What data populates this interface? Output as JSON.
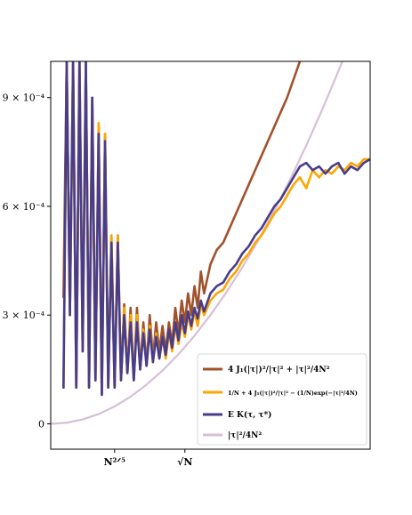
{
  "chart_data": {
    "type": "line",
    "title": "",
    "xlabel": "",
    "ylabel": "",
    "ylim": [
      -7e-05,
      0.001
    ],
    "xlim": [
      0,
      100
    ],
    "grid": false,
    "legend_position": "lower-right",
    "y_ticks": [
      {
        "value": 0,
        "label": "0"
      },
      {
        "value": 0.0003,
        "label": "3 × 10⁻⁴"
      },
      {
        "value": 0.0006,
        "label": "6 × 10⁻⁴"
      },
      {
        "value": 0.0009,
        "label": "9 × 10⁻⁴"
      }
    ],
    "x_ticks": [
      {
        "value": 20,
        "label": "N²ᐟ⁵"
      },
      {
        "value": 42,
        "label": "√N"
      }
    ],
    "series": [
      {
        "name": "4 J₁(|τ|)²/|τ|² + |τ|²/4N²",
        "color": "#a0522d",
        "x": [
          4,
          5,
          6,
          7,
          8,
          9,
          10,
          11,
          12,
          13,
          14,
          15,
          16,
          17,
          18,
          19,
          20,
          21,
          22,
          23,
          24,
          25,
          26,
          27,
          28,
          29,
          30,
          31,
          32,
          33,
          34,
          35,
          36,
          37,
          38,
          39,
          40,
          41,
          42,
          43,
          44,
          45,
          46,
          47,
          48,
          50,
          52,
          54,
          56,
          58,
          60,
          62,
          64,
          66,
          68,
          70,
          72,
          74,
          76,
          78,
          80,
          82,
          84,
          86,
          88,
          90,
          92,
          94,
          96,
          98,
          100
        ],
        "y": [
          0.00035,
          0.001,
          0.0003,
          0.001,
          0.0001,
          0.001,
          0.0002,
          0.001,
          0.0001,
          0.0009,
          0.00012,
          0.00082,
          8e-05,
          0.0008,
          0.0001,
          0.00052,
          0.0001,
          0.00052,
          0.00012,
          0.00033,
          0.00014,
          0.00032,
          0.00012,
          0.00032,
          0.00015,
          0.00028,
          0.00016,
          0.0003,
          0.00018,
          0.00028,
          0.0002,
          0.00027,
          0.0002,
          0.00028,
          0.00022,
          0.00032,
          0.00025,
          0.00034,
          0.00028,
          0.00036,
          0.0003,
          0.00038,
          0.00032,
          0.00042,
          0.00036,
          0.00044,
          0.00048,
          0.0005,
          0.00054,
          0.00058,
          0.00062,
          0.00066,
          0.0007,
          0.00074,
          0.00078,
          0.00082,
          0.00086,
          0.0009,
          0.00095,
          0.001,
          0.00105,
          0.0011,
          0.0011,
          0.0011,
          0.0011,
          0.0011,
          0.0011,
          0.0011,
          0.0011,
          0.0011,
          0.0011
        ]
      },
      {
        "name": "1/N + 4 J₁(|τ|)²/|τ|² − (1/N) exp(−|τ|²/4N)",
        "color": "#ffa500",
        "x": [
          4,
          5,
          6,
          7,
          8,
          9,
          10,
          11,
          12,
          13,
          14,
          15,
          16,
          17,
          18,
          19,
          20,
          21,
          22,
          23,
          24,
          25,
          26,
          27,
          28,
          29,
          30,
          31,
          32,
          33,
          34,
          35,
          36,
          37,
          38,
          39,
          40,
          41,
          42,
          43,
          44,
          45,
          46,
          47,
          48,
          50,
          52,
          54,
          56,
          58,
          60,
          62,
          64,
          66,
          68,
          70,
          72,
          74,
          76,
          78,
          80,
          82,
          84,
          86,
          88,
          90,
          92,
          94,
          96,
          98,
          100
        ],
        "y": [
          0.0001,
          0.001,
          0.0003,
          0.001,
          0.0001,
          0.001,
          0.0002,
          0.001,
          0.0001,
          0.0009,
          0.00012,
          0.00083,
          8e-05,
          0.0008,
          0.0001,
          0.00052,
          0.0001,
          0.00052,
          0.00012,
          0.00032,
          0.00014,
          0.0003,
          0.00012,
          0.0003,
          0.00015,
          0.00026,
          0.00016,
          0.00027,
          0.00017,
          0.00025,
          0.00018,
          0.00024,
          0.00018,
          0.00025,
          0.0002,
          0.00027,
          0.00022,
          0.00028,
          0.00024,
          0.0003,
          0.00026,
          0.00031,
          0.00027,
          0.00033,
          0.0003,
          0.00034,
          0.00036,
          0.00037,
          0.0004,
          0.00042,
          0.00045,
          0.00047,
          0.0005,
          0.00052,
          0.00055,
          0.00058,
          0.0006,
          0.00063,
          0.00066,
          0.00068,
          0.00065,
          0.0007,
          0.00068,
          0.0007,
          0.00069,
          0.00071,
          0.0007,
          0.00072,
          0.00071,
          0.00073,
          0.00073
        ]
      },
      {
        "name": "E K(τ, τ*)",
        "color": "#483d8b",
        "x": [
          4,
          5,
          6,
          7,
          8,
          9,
          10,
          11,
          12,
          13,
          14,
          15,
          16,
          17,
          18,
          19,
          20,
          21,
          22,
          23,
          24,
          25,
          26,
          27,
          28,
          29,
          30,
          31,
          32,
          33,
          34,
          35,
          36,
          37,
          38,
          39,
          40,
          41,
          42,
          43,
          44,
          45,
          46,
          47,
          48,
          50,
          52,
          54,
          56,
          58,
          60,
          62,
          64,
          66,
          68,
          70,
          72,
          74,
          76,
          78,
          80,
          82,
          84,
          86,
          88,
          90,
          92,
          94,
          96,
          98,
          100
        ],
        "y": [
          0.0001,
          0.001,
          0.0003,
          0.001,
          0.0001,
          0.001,
          0.0002,
          0.001,
          0.0001,
          0.0009,
          0.00012,
          0.0008,
          8e-05,
          0.00078,
          0.0001,
          0.0005,
          0.0001,
          0.0005,
          0.00012,
          0.0003,
          0.00014,
          0.00028,
          0.00012,
          0.00028,
          0.00015,
          0.00025,
          0.00016,
          0.00026,
          0.00017,
          0.00024,
          0.00018,
          0.00024,
          0.00019,
          0.00026,
          0.00021,
          0.00028,
          0.00023,
          0.0003,
          0.00025,
          0.00031,
          0.00027,
          0.00032,
          0.00029,
          0.00034,
          0.00031,
          0.00036,
          0.00038,
          0.00039,
          0.00042,
          0.00044,
          0.00047,
          0.00049,
          0.00052,
          0.00054,
          0.00057,
          0.0006,
          0.00062,
          0.00065,
          0.00068,
          0.00071,
          0.00072,
          0.0007,
          0.00071,
          0.00069,
          0.00071,
          0.00072,
          0.00069,
          0.00071,
          0.0007,
          0.00072,
          0.00073
        ]
      },
      {
        "name": "|τ|²/4N²",
        "color": "#d8bfd8",
        "x": [
          0,
          5,
          10,
          15,
          20,
          25,
          30,
          35,
          40,
          45,
          50,
          55,
          60,
          65,
          70,
          75,
          80,
          85,
          90,
          95,
          100
        ],
        "y": [
          0,
          3e-06,
          1.2e-05,
          2.7e-05,
          4.8e-05,
          7.5e-05,
          0.000108,
          0.000147,
          0.000192,
          0.000243,
          0.0003,
          0.000363,
          0.000432,
          0.000507,
          0.000588,
          0.000675,
          0.000768,
          0.000867,
          0.000972,
          0.00108,
          0.0012
        ]
      }
    ]
  },
  "legend": {
    "items": [
      {
        "label": "4 J₁(|τ|)²/|τ|² + |τ|²/4N²",
        "color": "#a0522d"
      },
      {
        "label": "1/N + 4 J₁(|τ|)²/|τ|² − (1/N)exp(−|τ|²/4N)",
        "color": "#ffa500"
      },
      {
        "label": "E K(τ, τ*)",
        "color": "#483d8b"
      },
      {
        "label": "|τ|²/4N²",
        "color": "#d8bfd8"
      }
    ]
  }
}
